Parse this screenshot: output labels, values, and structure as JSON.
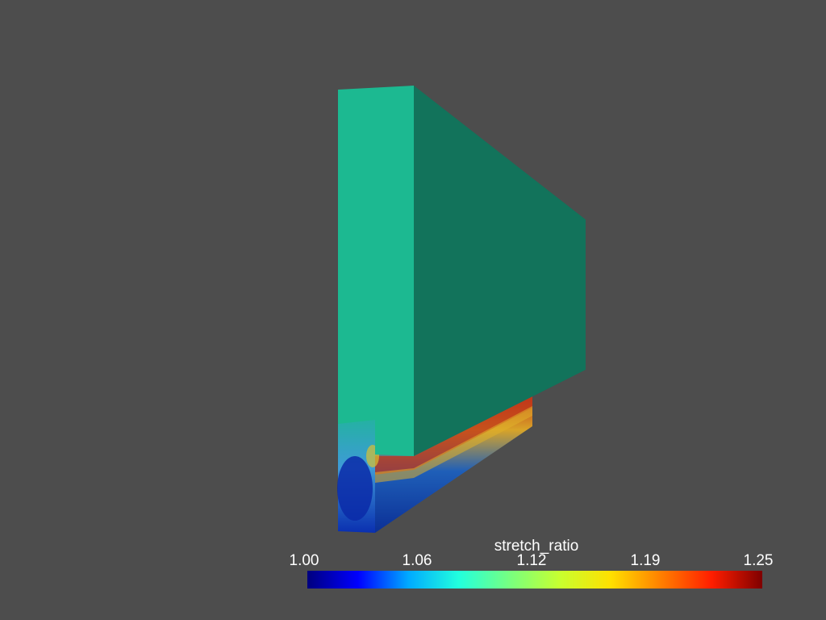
{
  "colorbar": {
    "title": "stretch_ratio",
    "ticks": [
      "1.00",
      "1.06",
      "1.12",
      "1.19",
      "1.25"
    ],
    "range": [
      1.0,
      1.25
    ],
    "colormap": "jet",
    "stops": [
      "#00007f",
      "#0000ff",
      "#00aaff",
      "#22ffdd",
      "#77ff80",
      "#c8ff2f",
      "#ffe000",
      "#ff7f00",
      "#ff1e00",
      "#7f0000"
    ]
  },
  "colors": {
    "background": "#4d4d4d",
    "front_face": "#1cb991",
    "side_face": "#12735b",
    "low_value": "#0a2fa8",
    "high_value": "#c0361a"
  }
}
